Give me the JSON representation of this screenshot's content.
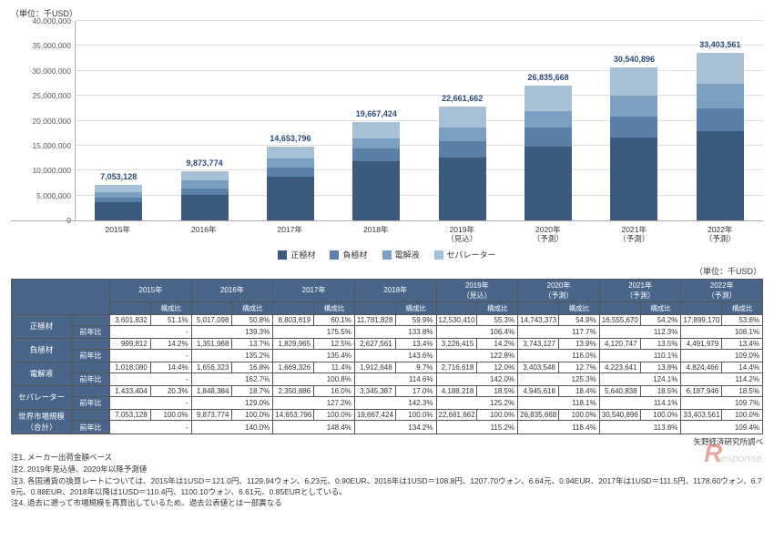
{
  "unit_label": "（単位：千USD）",
  "chart": {
    "type": "stacked-bar",
    "ylim": [
      0,
      40000000
    ],
    "ytick_step": 5000000,
    "y_ticks": [
      "0",
      "5,000,000",
      "10,000,000",
      "15,000,000",
      "20,000,000",
      "25,000,000",
      "30,000,000",
      "35,000,000",
      "40,000,000"
    ],
    "grid_color": "#dddddd",
    "background_color": "#ffffff",
    "categories": [
      "2015年",
      "2016年",
      "2017年",
      "2018年",
      "2019年\n（見込）",
      "2020年\n（予測）",
      "2021年\n（予測）",
      "2022年\n（予測）"
    ],
    "series": [
      {
        "name": "正極材",
        "color": "#3b5a7e",
        "values": [
          3601832,
          5017098,
          8803619,
          11781828,
          12530410,
          14743373,
          16555670,
          17899170
        ]
      },
      {
        "name": "負極材",
        "color": "#5a80a8",
        "values": [
          999812,
          1351968,
          1829965,
          2627561,
          3226415,
          3743127,
          4120747,
          4491979
        ]
      },
      {
        "name": "電解液",
        "color": "#7ca0c2",
        "values": [
          1018080,
          1656323,
          1669326,
          1912648,
          2716618,
          3403548,
          4223641,
          4824466
        ]
      },
      {
        "name": "セパレーター",
        "color": "#a8c0d6",
        "values": [
          1433404,
          1848384,
          2350886,
          3345387,
          4188218,
          4945618,
          5640838,
          6187946
        ]
      }
    ],
    "totals": [
      "7,053,128",
      "9,873,774",
      "14,653,796",
      "19,667,424",
      "22,661,662",
      "26,835,668",
      "30,540,896",
      "33,403,561"
    ]
  },
  "table_unit": "（単位：千USD）",
  "table": {
    "headers": [
      "",
      "2015年",
      "2016年",
      "2017年",
      "2018年",
      "2019年\n（見込）",
      "2020年\n（予測）",
      "2021年\n（予測）",
      "2022年\n（予測）"
    ],
    "sub": "構成比",
    "yoy_label": "前年比",
    "rows": [
      {
        "name": "正極材",
        "vals": [
          "3,601,832",
          "5,017,098",
          "8,803,619",
          "11,781,828",
          "12,530,410",
          "14,743,373",
          "16,555,670",
          "17,899,170"
        ],
        "pct": [
          "51.1%",
          "50.8%",
          "60.1%",
          "59.9%",
          "55.3%",
          "54.9%",
          "54.2%",
          "53.6%"
        ],
        "yoy": [
          "-",
          "139.3%",
          "175.5%",
          "133.8%",
          "106.4%",
          "117.7%",
          "112.3%",
          "108.1%"
        ]
      },
      {
        "name": "負極材",
        "vals": [
          "999,812",
          "1,351,968",
          "1,829,965",
          "2,627,561",
          "3,226,415",
          "3,743,127",
          "4,120,747",
          "4,491,979"
        ],
        "pct": [
          "14.2%",
          "13.7%",
          "12.5%",
          "13.4%",
          "14.2%",
          "13.9%",
          "13.5%",
          "13.4%"
        ],
        "yoy": [
          "-",
          "135.2%",
          "135.4%",
          "143.6%",
          "122.8%",
          "116.0%",
          "110.1%",
          "109.0%"
        ]
      },
      {
        "name": "電解液",
        "vals": [
          "1,018,080",
          "1,656,323",
          "1,669,326",
          "1,912,648",
          "2,716,618",
          "3,403,548",
          "4,223,641",
          "4,824,466"
        ],
        "pct": [
          "14.4%",
          "16.8%",
          "11.4%",
          "9.7%",
          "12.0%",
          "12.7%",
          "13.8%",
          "14.4%"
        ],
        "yoy": [
          "-",
          "162.7%",
          "100.8%",
          "114.6%",
          "142.0%",
          "125.3%",
          "124.1%",
          "114.2%"
        ]
      },
      {
        "name": "セパレーター",
        "vals": [
          "1,433,404",
          "1,848,384",
          "2,350,886",
          "3,345,387",
          "4,188,218",
          "4,945,618",
          "5,640,838",
          "6,187,946"
        ],
        "pct": [
          "20.3%",
          "18.7%",
          "16.0%",
          "17.0%",
          "18.5%",
          "18.4%",
          "18.5%",
          "18.5%"
        ],
        "yoy": [
          "-",
          "129.0%",
          "127.2%",
          "142.3%",
          "125.2%",
          "118.1%",
          "114.1%",
          "109.7%"
        ]
      },
      {
        "name": "世界市場規模\n（合計）",
        "vals": [
          "7,053,128",
          "9,873,774",
          "14,653,796",
          "19,667,424",
          "22,661,662",
          "26,835,668",
          "30,540,896",
          "33,403,561"
        ],
        "pct": [
          "100.0%",
          "100.0%",
          "100.0%",
          "100.0%",
          "100.0%",
          "100.0%",
          "100.0%",
          "100.0%"
        ],
        "yoy": [
          "-",
          "140.0%",
          "148.4%",
          "134.2%",
          "115.2%",
          "118.4%",
          "113.8%",
          "109.4%"
        ]
      }
    ]
  },
  "source": "矢野経済研究所調べ",
  "notes": [
    "注1. メーカー出荷金額ベース",
    "注2. 2019年見込値、2020年以降予測値",
    "注3. 各国通貨の換算レートについては、2015年は1USD＝121.0円、1129.94ウォン、6.23元、0.90EUR、2016年は1USD＝108.8円、1207.70ウォン、6.64元、0.94EUR、2017年は1USD＝111.5円、1178.60ウォン、6.79元、0.88EUR、2018年以降は1USD＝110.4円、1100.10ウォン、6.61元、0.85EURとしている。",
    "注4. 過去に遡って市場規模を再算出しているため、過去公表値とは一部異なる"
  ],
  "watermark": {
    "r": "R",
    "t": "esponse."
  }
}
